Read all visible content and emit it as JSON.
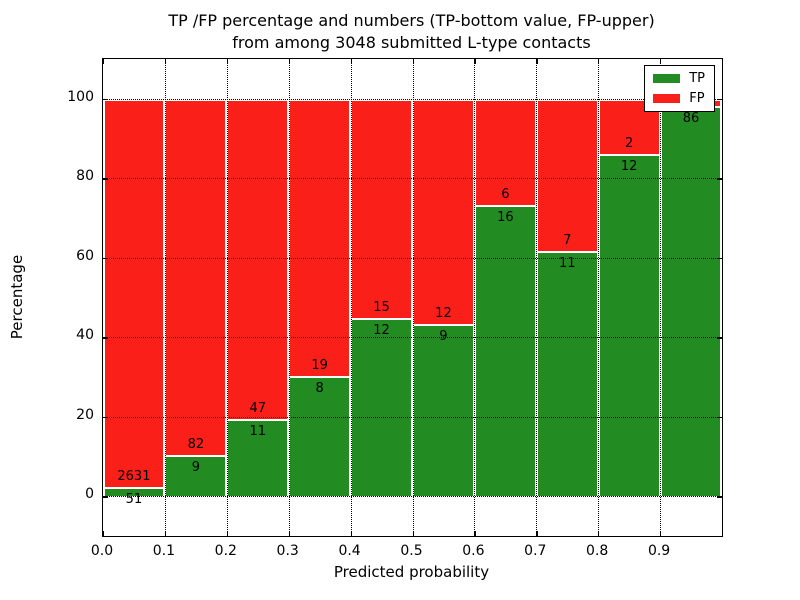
{
  "title": {
    "line1": "TP /FP percentage and numbers (TP-bottom value, FP-upper)",
    "line2": "from among 3048 submitted L-type contacts"
  },
  "axes": {
    "x_label": "Predicted probability",
    "y_label": "Percentage",
    "x_tick_labels": [
      "0.0",
      "0.1",
      "0.2",
      "0.3",
      "0.4",
      "0.5",
      "0.6",
      "0.7",
      "0.8",
      "0.9"
    ],
    "y_tick_labels": [
      "0",
      "20",
      "40",
      "60",
      "80",
      "100"
    ]
  },
  "legend": {
    "items": [
      {
        "label": "TP",
        "color": "#228b22"
      },
      {
        "label": "FP",
        "color": "#fa1f19"
      }
    ]
  },
  "colors": {
    "tp_green": "#228b22",
    "fp_red": "#fa1f19",
    "bar_edge_white": "#ffffff",
    "grid_black": "#000000"
  },
  "chart_data": {
    "type": "bar",
    "stacked": true,
    "normalized": "each bin stacked to 100%",
    "title": "TP /FP percentage and numbers (TP-bottom value, FP-upper) from among 3048 submitted L-type contacts",
    "xlabel": "Predicted probability",
    "ylabel": "Percentage",
    "xlim": [
      0.0,
      1.0
    ],
    "ylim": [
      -10,
      110
    ],
    "x_ticks": [
      0.0,
      0.1,
      0.2,
      0.3,
      0.4,
      0.5,
      0.6,
      0.7,
      0.8,
      0.9
    ],
    "y_ticks": [
      0,
      20,
      40,
      60,
      80,
      100
    ],
    "grid": "dotted, both axes",
    "legend_position": "upper right",
    "total_contacts": 3048,
    "series_names": [
      "TP",
      "FP"
    ],
    "bins": [
      {
        "x_range": [
          0.0,
          0.1
        ],
        "tp": 51,
        "fp": 2631,
        "fp_label_visible": true
      },
      {
        "x_range": [
          0.1,
          0.2
        ],
        "tp": 9,
        "fp": 82,
        "fp_label_visible": true
      },
      {
        "x_range": [
          0.2,
          0.3
        ],
        "tp": 11,
        "fp": 47,
        "fp_label_visible": true
      },
      {
        "x_range": [
          0.3,
          0.4
        ],
        "tp": 8,
        "fp": 19,
        "fp_label_visible": true
      },
      {
        "x_range": [
          0.4,
          0.5
        ],
        "tp": 12,
        "fp": 15,
        "fp_label_visible": true
      },
      {
        "x_range": [
          0.5,
          0.6
        ],
        "tp": 9,
        "fp": 12,
        "fp_label_visible": true
      },
      {
        "x_range": [
          0.6,
          0.7
        ],
        "tp": 16,
        "fp": 6,
        "fp_label_visible": true
      },
      {
        "x_range": [
          0.7,
          0.8
        ],
        "tp": 11,
        "fp": 7,
        "fp_label_visible": true
      },
      {
        "x_range": [
          0.8,
          0.9
        ],
        "tp": 12,
        "fp": 2,
        "fp_label_visible": true
      },
      {
        "x_range": [
          0.9,
          1.0
        ],
        "tp": 86,
        "fp": 2,
        "fp_label_visible": false
      }
    ]
  }
}
